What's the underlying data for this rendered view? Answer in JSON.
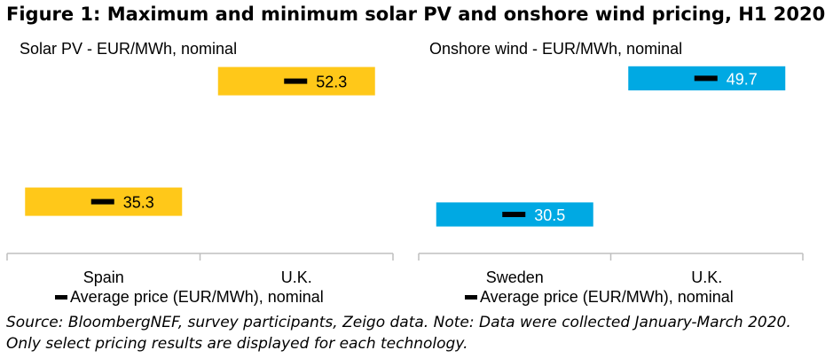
{
  "figure_title": "Figure 1: Maximum and minimum solar PV and onshore wind pricing, H1 2020",
  "source_note": "Source: BloombergNEF, survey participants, Zeigo data. Note: Data were collected January-March 2020. Only select pricing results are displayed for each technology.",
  "chart_data": [
    {
      "type": "bar",
      "title": "Solar PV - EUR/MWh, nominal",
      "categories": [
        "Spain",
        "U.K."
      ],
      "values": [
        35.3,
        52.3
      ],
      "value_labels": [
        "35.3",
        "52.3"
      ],
      "legend": "Average price (EUR/MWh), nominal",
      "color": "#FFC819",
      "label_color": "#000000",
      "ylim": [
        28,
        55
      ]
    },
    {
      "type": "bar",
      "title": "Onshore wind - EUR/MWh, nominal",
      "categories": [
        "Sweden",
        "U.K."
      ],
      "values": [
        30.5,
        49.7
      ],
      "value_labels": [
        "30.5",
        "49.7"
      ],
      "legend": "Average price (EUR/MWh), nominal",
      "color": "#00A9E3",
      "label_color": "#ffffff",
      "ylim": [
        25,
        52
      ]
    }
  ]
}
